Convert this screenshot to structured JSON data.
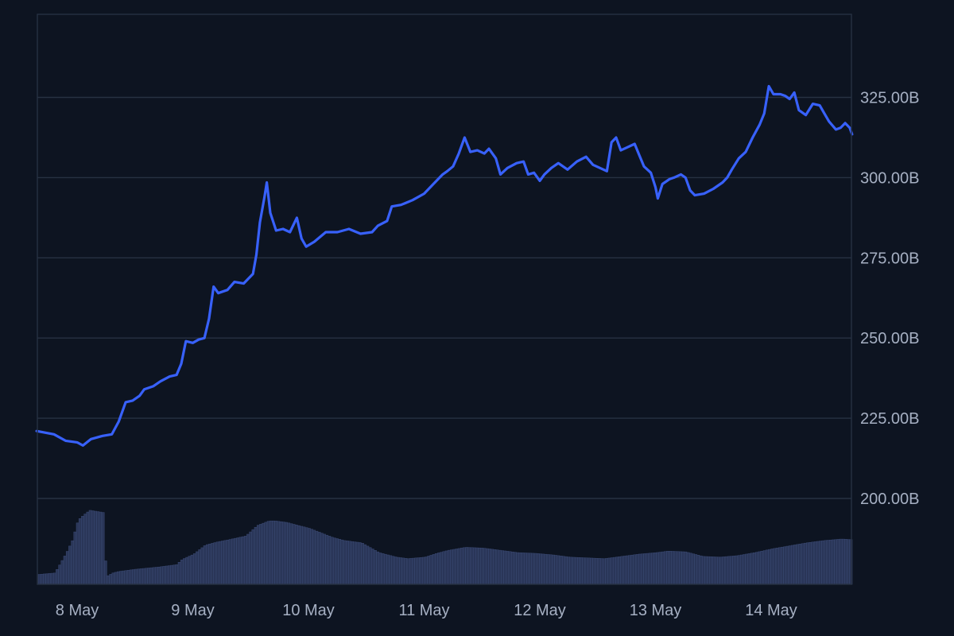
{
  "chart_data": {
    "type": "line",
    "title": "",
    "xlabel": "",
    "ylabel": "",
    "x_unit": "days since 8 May",
    "xlim": [
      -0.35,
      6.7
    ],
    "ylim": [
      177,
      351
    ],
    "y_ticks": [
      200,
      225,
      250,
      275,
      300,
      325
    ],
    "y_tick_labels": [
      "200.00B",
      "225.00B",
      "250.00B",
      "275.00B",
      "300.00B",
      "325.00B"
    ],
    "x_ticks": [
      0,
      1,
      2,
      3,
      4,
      5,
      6
    ],
    "x_tick_labels": [
      "8 May",
      "9 May",
      "10 May",
      "11 May",
      "12 May",
      "13 May",
      "14 May"
    ],
    "grid": true,
    "colors": {
      "background": "#0d1421",
      "line": "#3861fb",
      "grid": "#273142",
      "volume": "#2a3658",
      "volume_edge": "#3b4a74",
      "tick_text": "#a6b0c3"
    },
    "series": [
      {
        "values": [
          [
            -0.35,
            221
          ],
          [
            -0.2,
            220
          ],
          [
            -0.1,
            218
          ],
          [
            0.0,
            217.5
          ],
          [
            0.05,
            216.5
          ],
          [
            0.12,
            218.5
          ],
          [
            0.22,
            219.5
          ],
          [
            0.3,
            220
          ],
          [
            0.36,
            224
          ],
          [
            0.42,
            230
          ],
          [
            0.48,
            230.5
          ],
          [
            0.54,
            232
          ],
          [
            0.58,
            234
          ],
          [
            0.66,
            235
          ],
          [
            0.72,
            236.5
          ],
          [
            0.8,
            238
          ],
          [
            0.86,
            238.5
          ],
          [
            0.9,
            242
          ],
          [
            0.94,
            249
          ],
          [
            1.0,
            248.5
          ],
          [
            1.05,
            249.5
          ],
          [
            1.1,
            250
          ],
          [
            1.14,
            256
          ],
          [
            1.18,
            266
          ],
          [
            1.22,
            264
          ],
          [
            1.3,
            265
          ],
          [
            1.36,
            267.5
          ],
          [
            1.44,
            267
          ],
          [
            1.52,
            270
          ],
          [
            1.55,
            276
          ],
          [
            1.58,
            286
          ],
          [
            1.62,
            294
          ],
          [
            1.64,
            298.5
          ],
          [
            1.67,
            289
          ],
          [
            1.72,
            283.5
          ],
          [
            1.78,
            284
          ],
          [
            1.84,
            283
          ],
          [
            1.9,
            287.5
          ],
          [
            1.94,
            281
          ],
          [
            1.98,
            278.5
          ],
          [
            2.05,
            280
          ],
          [
            2.15,
            283
          ],
          [
            2.25,
            283
          ],
          [
            2.35,
            284
          ],
          [
            2.45,
            282.5
          ],
          [
            2.55,
            283
          ],
          [
            2.6,
            285
          ],
          [
            2.68,
            286.5
          ],
          [
            2.72,
            291
          ],
          [
            2.8,
            291.5
          ],
          [
            2.9,
            293
          ],
          [
            3.0,
            295
          ],
          [
            3.08,
            298
          ],
          [
            3.16,
            301
          ],
          [
            3.2,
            302
          ],
          [
            3.25,
            303.5
          ],
          [
            3.3,
            307.5
          ],
          [
            3.35,
            312.5
          ],
          [
            3.4,
            308
          ],
          [
            3.46,
            308.5
          ],
          [
            3.52,
            307.5
          ],
          [
            3.56,
            309
          ],
          [
            3.62,
            306
          ],
          [
            3.66,
            301
          ],
          [
            3.72,
            303
          ],
          [
            3.8,
            304.5
          ],
          [
            3.86,
            305
          ],
          [
            3.9,
            301
          ],
          [
            3.95,
            301.5
          ],
          [
            4.0,
            299
          ],
          [
            4.04,
            301
          ],
          [
            4.1,
            303
          ],
          [
            4.16,
            304.5
          ],
          [
            4.24,
            302.5
          ],
          [
            4.32,
            305
          ],
          [
            4.4,
            306.5
          ],
          [
            4.46,
            304
          ],
          [
            4.52,
            303
          ],
          [
            4.58,
            302
          ],
          [
            4.62,
            311
          ],
          [
            4.66,
            312.5
          ],
          [
            4.7,
            308.5
          ],
          [
            4.76,
            309.5
          ],
          [
            4.82,
            310.5
          ],
          [
            4.86,
            307
          ],
          [
            4.9,
            303.5
          ],
          [
            4.96,
            301.5
          ],
          [
            5.0,
            297
          ],
          [
            5.02,
            293.5
          ],
          [
            5.06,
            298
          ],
          [
            5.12,
            299.5
          ],
          [
            5.16,
            300
          ],
          [
            5.22,
            301
          ],
          [
            5.26,
            300
          ],
          [
            5.3,
            296
          ],
          [
            5.34,
            294.5
          ],
          [
            5.42,
            295
          ],
          [
            5.5,
            296.5
          ],
          [
            5.58,
            298.5
          ],
          [
            5.62,
            300
          ],
          [
            5.66,
            302.5
          ],
          [
            5.72,
            306
          ],
          [
            5.78,
            308
          ],
          [
            5.84,
            312.5
          ],
          [
            5.9,
            316.5
          ],
          [
            5.94,
            320
          ],
          [
            5.98,
            328.5
          ],
          [
            6.02,
            326
          ],
          [
            6.08,
            326
          ],
          [
            6.12,
            325.5
          ],
          [
            6.16,
            324.5
          ],
          [
            6.2,
            326.5
          ],
          [
            6.24,
            321
          ],
          [
            6.3,
            319.5
          ],
          [
            6.36,
            323
          ],
          [
            6.42,
            322.5
          ],
          [
            6.46,
            320
          ],
          [
            6.5,
            317.5
          ],
          [
            6.56,
            315
          ],
          [
            6.6,
            315.5
          ],
          [
            6.64,
            317
          ],
          [
            6.68,
            315.5
          ],
          [
            6.7,
            313.5
          ]
        ]
      }
    ],
    "volume": {
      "x": [
        -0.35,
        -0.2,
        -0.1,
        -0.05,
        0.0,
        0.05,
        0.1,
        0.18,
        0.22,
        0.24,
        0.3,
        0.35,
        0.5,
        0.7,
        0.85,
        0.9,
        1.0,
        1.1,
        1.2,
        1.3,
        1.45,
        1.55,
        1.65,
        1.7,
        1.8,
        1.9,
        2.0,
        2.1,
        2.2,
        2.3,
        2.45,
        2.6,
        2.75,
        2.85,
        3.0,
        3.1,
        3.2,
        3.35,
        3.5,
        3.65,
        3.8,
        3.95,
        4.1,
        4.25,
        4.4,
        4.55,
        4.7,
        4.85,
        5.0,
        5.1,
        5.25,
        5.4,
        5.55,
        5.7,
        5.85,
        6.0,
        6.15,
        6.3,
        6.45,
        6.6,
        6.7
      ],
      "levels": [
        0.13,
        0.15,
        0.42,
        0.58,
        0.85,
        0.92,
        0.98,
        0.96,
        0.95,
        0.1,
        0.15,
        0.17,
        0.2,
        0.23,
        0.26,
        0.33,
        0.4,
        0.52,
        0.56,
        0.59,
        0.64,
        0.78,
        0.84,
        0.84,
        0.82,
        0.78,
        0.74,
        0.68,
        0.62,
        0.58,
        0.55,
        0.42,
        0.36,
        0.34,
        0.36,
        0.41,
        0.45,
        0.49,
        0.48,
        0.45,
        0.42,
        0.41,
        0.39,
        0.36,
        0.35,
        0.34,
        0.37,
        0.4,
        0.42,
        0.44,
        0.43,
        0.37,
        0.36,
        0.38,
        0.42,
        0.47,
        0.51,
        0.55,
        0.58,
        0.6,
        0.59
      ]
    }
  }
}
